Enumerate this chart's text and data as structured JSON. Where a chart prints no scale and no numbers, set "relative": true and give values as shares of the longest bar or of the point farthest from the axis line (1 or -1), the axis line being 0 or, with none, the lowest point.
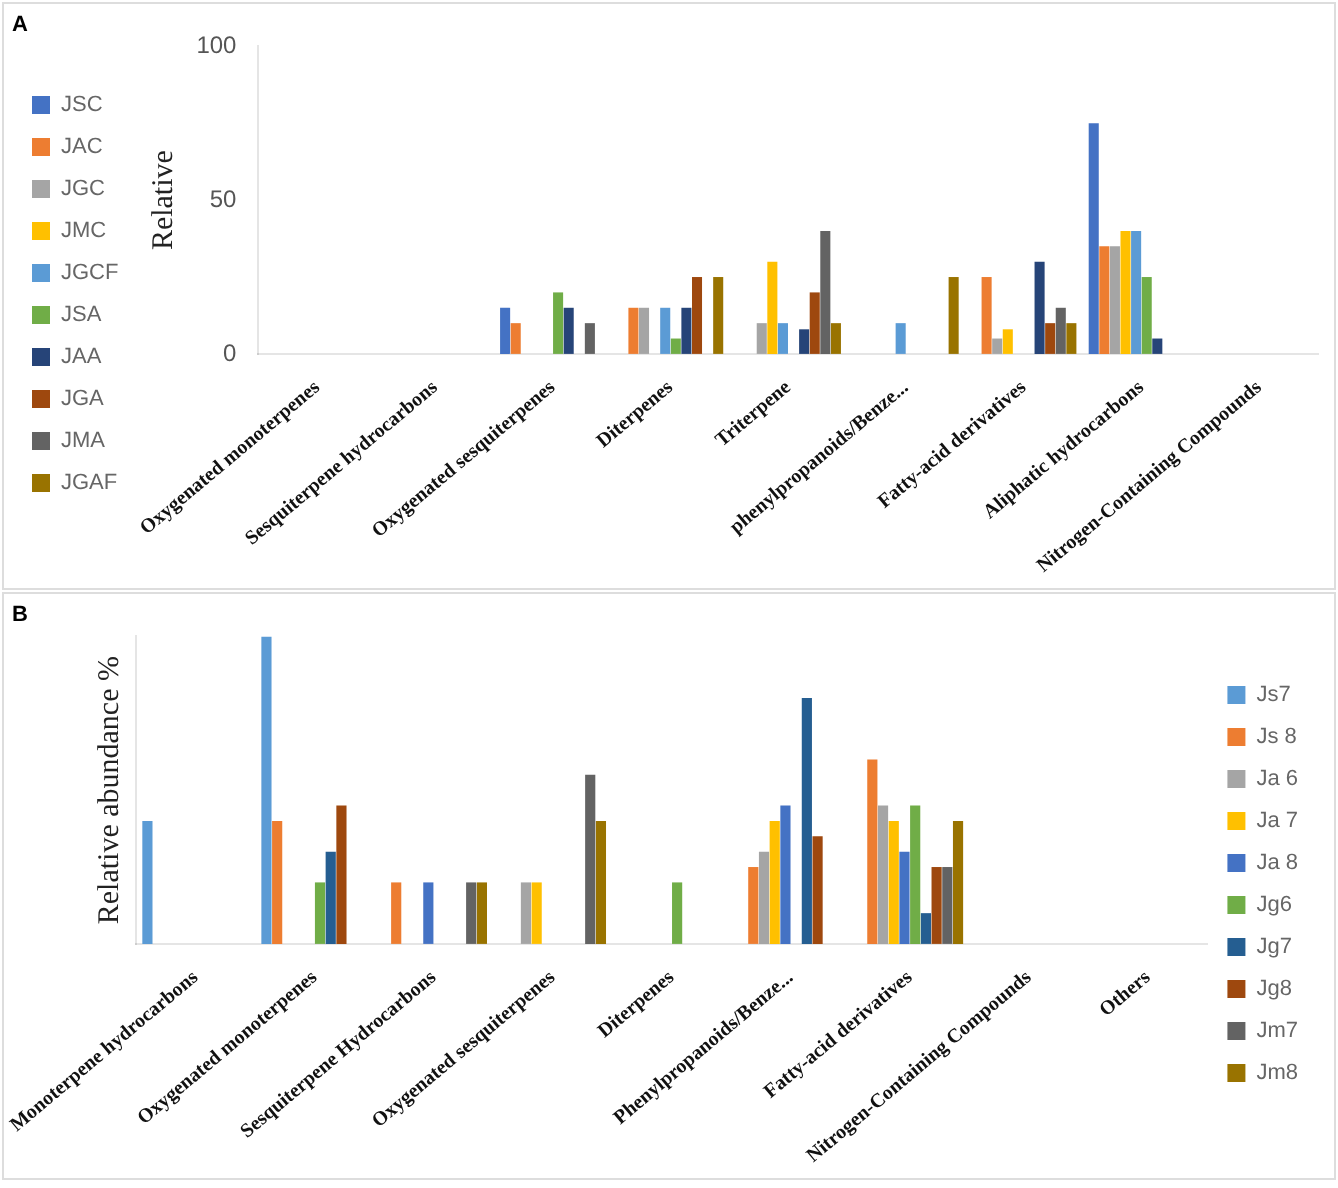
{
  "chart_data": [
    {
      "type": "bar",
      "title": "A",
      "ylabel": "Relative",
      "ylim": [
        0,
        100
      ],
      "yticks": [
        0,
        50,
        100
      ],
      "grid": false,
      "legend": "left",
      "categories": [
        "Oxygenated monoterpenes",
        "Sesquiterpene hydrocarbons",
        "Oxygenated sesquiterpenes",
        "Diterpenes",
        "Triterpene",
        "phenylpropanoids/Benze...",
        "Fatty-acid derivatives",
        "Aliphatic hydrocarbons",
        "Nitrogen-Containing Compounds"
      ],
      "series": [
        {
          "name": "JSC",
          "color": "#4472c4",
          "values": [
            0,
            0,
            15,
            0,
            0,
            0,
            0,
            75,
            0
          ]
        },
        {
          "name": "JAC",
          "color": "#ed7d31",
          "values": [
            0,
            0,
            10,
            15,
            0,
            0,
            25,
            35,
            0
          ]
        },
        {
          "name": "JGC",
          "color": "#a5a5a5",
          "values": [
            0,
            0,
            0,
            15,
            10,
            0,
            5,
            35,
            0
          ]
        },
        {
          "name": "JMC",
          "color": "#ffc000",
          "values": [
            0,
            0,
            0,
            0,
            30,
            0,
            8,
            40,
            0
          ]
        },
        {
          "name": "JGCF",
          "color": "#5b9bd5",
          "values": [
            0,
            0,
            0,
            15,
            10,
            10,
            0,
            40,
            0
          ]
        },
        {
          "name": "JSA",
          "color": "#70ad47",
          "values": [
            0,
            0,
            20,
            5,
            0,
            0,
            0,
            25,
            0
          ]
        },
        {
          "name": "JAA",
          "color": "#264478",
          "values": [
            0,
            0,
            15,
            15,
            8,
            0,
            30,
            5,
            0
          ]
        },
        {
          "name": "JGA",
          "color": "#9e480e",
          "values": [
            0,
            0,
            0,
            25,
            20,
            0,
            10,
            0,
            0
          ]
        },
        {
          "name": "JMA",
          "color": "#636363",
          "values": [
            0,
            0,
            10,
            0,
            40,
            0,
            15,
            0,
            0
          ]
        },
        {
          "name": "JGAF",
          "color": "#997300",
          "values": [
            0,
            0,
            0,
            25,
            10,
            25,
            10,
            0,
            0
          ]
        }
      ]
    },
    {
      "type": "bar",
      "title": "B",
      "ylabel": "Relative abundance %",
      "relative": true,
      "grid": false,
      "legend": "right",
      "categories": [
        "Monoterpene hydrocarbons",
        "Oxygenated monoterpenes",
        "Sesquiterpene Hydrocarbons",
        "Oxygenated sesquiterpenes",
        "Diterpenes",
        "Phenylpropanoids/Benze...",
        "Fatty-acid derivatives",
        "Nitrogen-Containing Compounds",
        "Others"
      ],
      "series": [
        {
          "name": "Js7",
          "color": "#5b9bd5",
          "values": [
            0.4,
            1,
            0,
            0,
            0,
            0,
            0,
            0,
            0
          ]
        },
        {
          "name": "Js 8",
          "color": "#ed7d31",
          "values": [
            0,
            0.4,
            0.2,
            0,
            0,
            0.25,
            0.6,
            0,
            0
          ]
        },
        {
          "name": "Ja 6",
          "color": "#a5a5a5",
          "values": [
            0,
            0,
            0,
            0.2,
            0,
            0.3,
            0.45,
            0,
            0
          ]
        },
        {
          "name": "Ja 7",
          "color": "#ffc000",
          "values": [
            0,
            0,
            0,
            0.2,
            0,
            0.4,
            0.4,
            0,
            0
          ]
        },
        {
          "name": "Ja 8",
          "color": "#4472c4",
          "values": [
            0,
            0,
            0.2,
            0,
            0,
            0.45,
            0.3,
            0,
            0
          ]
        },
        {
          "name": "Jg6",
          "color": "#70ad47",
          "values": [
            0,
            0.2,
            0,
            0,
            0.2,
            0,
            0.45,
            0,
            0
          ]
        },
        {
          "name": "Jg7",
          "color": "#255e91",
          "values": [
            0,
            0.3,
            0,
            0,
            0,
            0.8,
            0.1,
            0,
            0
          ]
        },
        {
          "name": "Jg8",
          "color": "#9e480e",
          "values": [
            0,
            0.45,
            0,
            0,
            0,
            0.35,
            0.25,
            0,
            0
          ]
        },
        {
          "name": "Jm7",
          "color": "#636363",
          "values": [
            0,
            0,
            0.2,
            0.55,
            0,
            0,
            0.25,
            0,
            0
          ]
        },
        {
          "name": "Jm8",
          "color": "#997300",
          "values": [
            0,
            0,
            0.2,
            0.4,
            0,
            0,
            0.4,
            0,
            0
          ]
        }
      ]
    }
  ]
}
